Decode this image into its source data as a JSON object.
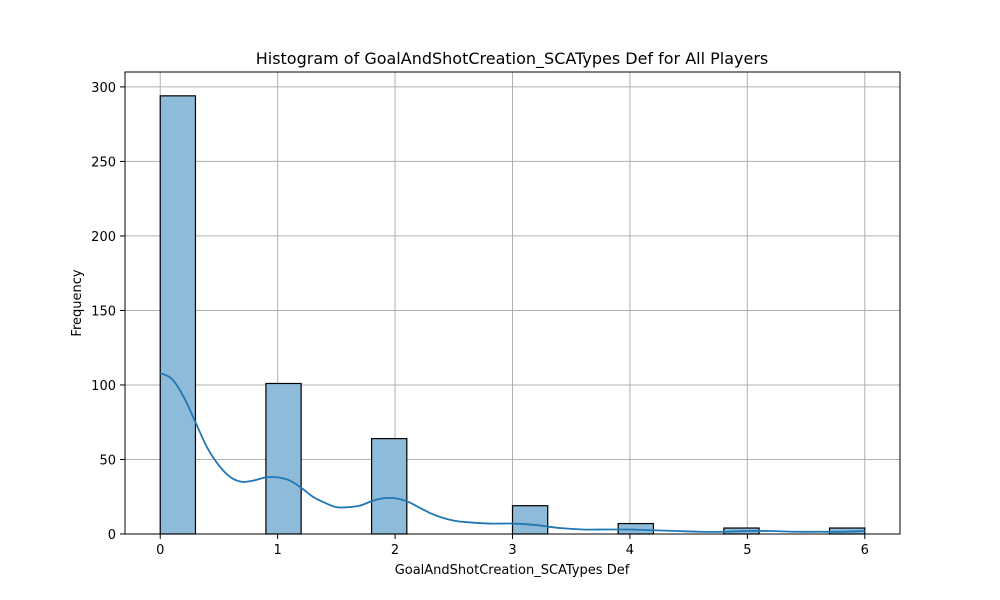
{
  "chart_data": {
    "type": "bar",
    "title": "Histogram of GoalAndShotCreation_SCATypes Def for All Players",
    "xlabel": "GoalAndShotCreation_SCATypes Def",
    "ylabel": "Frequency",
    "xlim": [
      -0.3,
      6.3
    ],
    "ylim": [
      0,
      310
    ],
    "xticks": [
      0,
      1,
      2,
      3,
      4,
      5,
      6
    ],
    "yticks": [
      0,
      50,
      100,
      150,
      200,
      250,
      300
    ],
    "grid": true,
    "bin_width": 0.3,
    "bins": [
      {
        "x0": 0.0,
        "count": 294
      },
      {
        "x0": 0.9,
        "count": 101
      },
      {
        "x0": 1.8,
        "count": 64
      },
      {
        "x0": 3.0,
        "count": 19
      },
      {
        "x0": 3.9,
        "count": 7
      },
      {
        "x0": 4.8,
        "count": 4
      },
      {
        "x0": 5.7,
        "count": 4
      }
    ],
    "kde": {
      "x": [
        0,
        0.1,
        0.2,
        0.3,
        0.4,
        0.5,
        0.6,
        0.7,
        0.8,
        0.9,
        1.0,
        1.1,
        1.2,
        1.3,
        1.4,
        1.5,
        1.6,
        1.7,
        1.8,
        1.9,
        2.0,
        2.1,
        2.2,
        2.3,
        2.4,
        2.5,
        2.6,
        2.8,
        3.0,
        3.2,
        3.4,
        3.6,
        3.8,
        4.0,
        4.2,
        4.4,
        4.6,
        4.8,
        5.0,
        5.2,
        5.4,
        5.6,
        5.8,
        6.0
      ],
      "y": [
        108,
        104,
        92,
        75,
        58,
        46,
        38,
        35,
        36,
        38,
        38,
        36,
        31,
        25,
        21,
        18,
        18,
        19,
        22,
        24,
        24,
        22,
        18,
        14,
        11,
        9,
        8,
        7,
        7,
        6,
        4,
        3,
        3,
        3,
        2.5,
        2,
        1.5,
        1.5,
        2,
        2,
        1.5,
        1.5,
        1.5,
        2
      ]
    }
  }
}
